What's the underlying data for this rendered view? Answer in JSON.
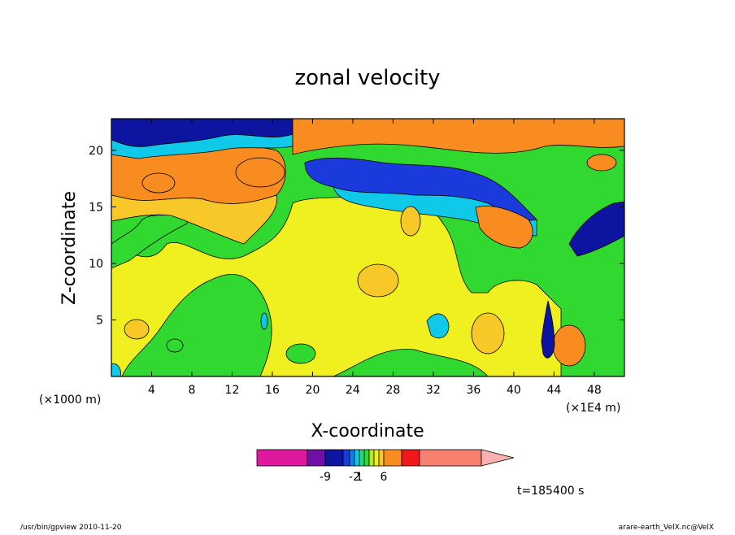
{
  "chart_data": {
    "type": "heatmap",
    "title": "zonal velocity",
    "xlabel": "X-coordinate",
    "ylabel": "Z-coordinate",
    "x_unit_label": "(×1E4 m)",
    "y_unit_label": "(×1000 m)",
    "x_ticks": [
      "4",
      "8",
      "12",
      "16",
      "20",
      "24",
      "28",
      "32",
      "36",
      "40",
      "44",
      "48"
    ],
    "y_ticks": [
      "5",
      "10",
      "15",
      "20"
    ],
    "xlim": [
      0,
      51
    ],
    "ylim": [
      0,
      22.8
    ],
    "colorbar": {
      "colors": [
        "#e0189e",
        "#7010a8",
        "#0c14a0",
        "#1a3adc",
        "#0c80e8",
        "#10c8e8",
        "#20d880",
        "#30d830",
        "#b8e820",
        "#f0f020",
        "#f8c828",
        "#f88c20",
        "#f01818",
        "#f88070",
        "#f8b0b0"
      ],
      "labels": [
        "-9",
        "-2",
        "1",
        "6"
      ]
    },
    "time_label": "t=185400 s",
    "footer_left": "/usr/bin/gpview  2010-11-20",
    "footer_right": "arare-earth_VelX.nc@VelX"
  }
}
